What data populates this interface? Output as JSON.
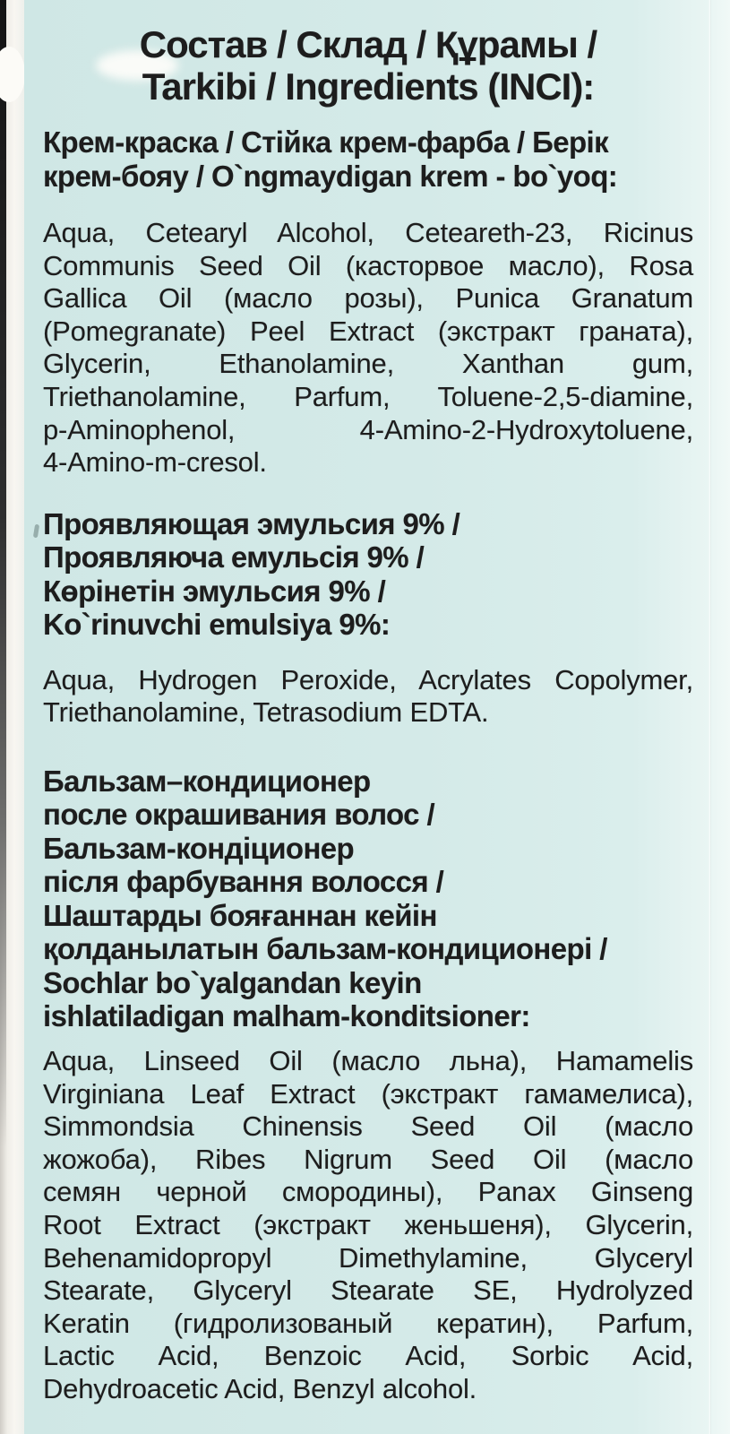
{
  "photo": {
    "panel_background": "#d4eae8",
    "ink_color": "#1d1d1d",
    "box_edge_color": "#f5f3ed"
  },
  "title": {
    "lines": [
      "Состав / Склад / Құрамы /",
      "Tarkibi / Ingredients (INCI):"
    ]
  },
  "cream_dye": {
    "heading_lines": [
      "Крем-краска / Стійка крем-фарба / Берік",
      "крем-бояу / O`ngmaydigan krem - bo`yoq:"
    ],
    "ingredients_lines": [
      "Aqua, Cetearyl Alcohol, Ceteareth-23, Ricinus",
      "Communis Seed Oil (касторвое масло), Rosa",
      "Gallica Oil (масло розы), Punica Granatum",
      "(Pomegranate) Peel Extract (экстракт граната),",
      "Glycerin, Ethanolamine, Xanthan gum,",
      "Triethanolamine, Parfum, Toluene-2,5-diamine,",
      "p-Aminophenol, 4-Amino-2-Hydroxytoluene,",
      "4-Amino-m-cresol."
    ]
  },
  "developing_emulsion": {
    "heading_lines": [
      "Проявляющая эмульсия 9% /",
      "Проявляюча емульсія 9% /",
      "Көрінетін эмульсия 9% /",
      "Ko`rinuvchi emulsiya 9%:"
    ],
    "ingredients_lines": [
      "Aqua, Hydrogen Peroxide, Acrylates Copolymer,",
      "Triethanolamine, Tetrasodium EDTA."
    ]
  },
  "balm_conditioner": {
    "heading_lines": [
      "Бальзам–кондиционер",
      "после окрашивания волос /",
      "Бальзам-кондіционер",
      "після фарбування волосся /",
      "Шаштарды бояғаннан кейін",
      "қолданылатын бальзам-кондиционері /",
      "Sochlar bo`yalgandan keyin",
      "ishlatiladigan malham-konditsioner:"
    ],
    "ingredients_lines": [
      "Aqua, Linseed Oil (масло льна), Hamamelis",
      "Virginiana Leaf Extract (экстракт гамамелиса),",
      "Simmondsia Chinensis Seed Oil (масло",
      "жожоба), Ribes Nigrum Seed Oil (масло",
      "семян черной смородины), Panax Ginseng",
      "Root Extract (экстракт женьшеня), Glycerin,",
      "Behenamidopropyl Dimethylamine, Glyceryl",
      "Stearate, Glyceryl Stearate SE, Hydrolyzed",
      "Keratin (гидролизованый кератин), Parfum,",
      "Lactic Acid, Benzoic Acid, Sorbic Acid,",
      "Dehydroacetic Acid, Benzyl alcohol."
    ]
  }
}
